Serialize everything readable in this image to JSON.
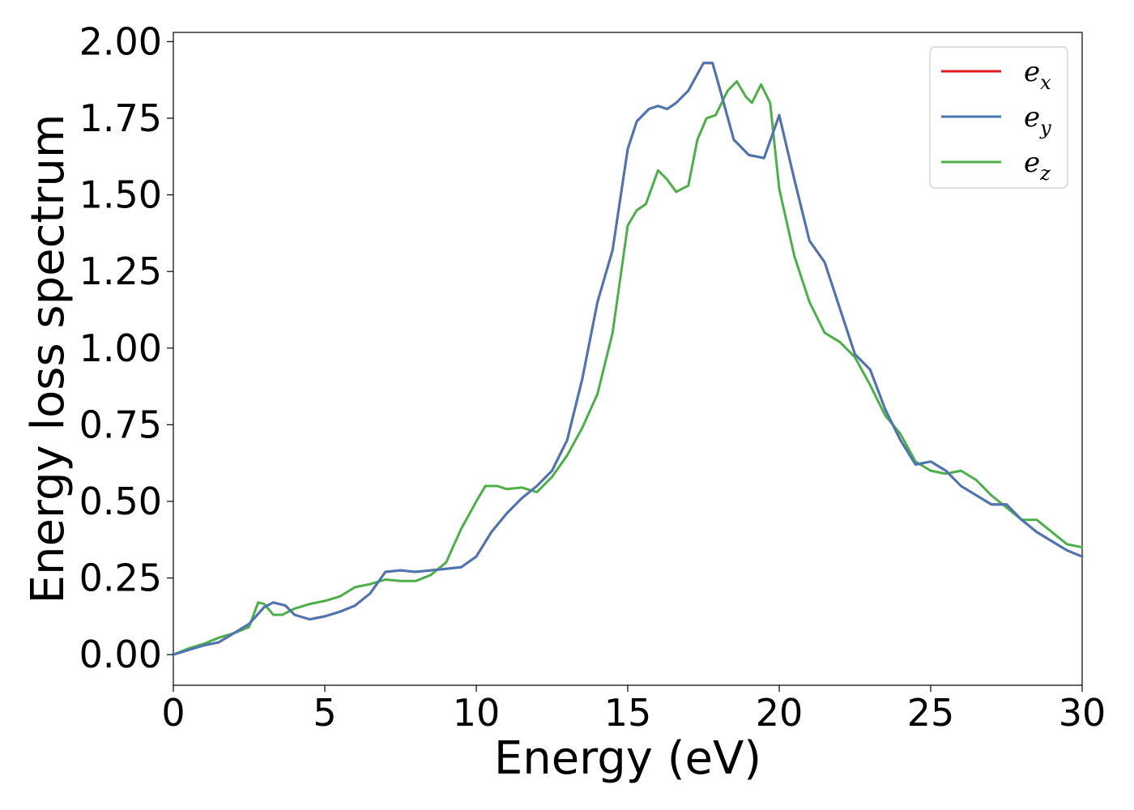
{
  "chart_data": {
    "type": "line",
    "title": "",
    "xlabel": "Energy (eV)",
    "ylabel": "Energy loss spectrum",
    "xlim": [
      0,
      30
    ],
    "ylim": [
      -0.1,
      2.03
    ],
    "xticks": [
      0,
      5,
      10,
      15,
      20,
      25,
      30
    ],
    "xtick_labels": [
      "0",
      "5",
      "10",
      "15",
      "20",
      "25",
      "30"
    ],
    "yticks": [
      0.0,
      0.25,
      0.5,
      0.75,
      1.0,
      1.25,
      1.5,
      1.75,
      2.0
    ],
    "ytick_labels": [
      "0.00",
      "0.25",
      "0.50",
      "0.75",
      "1.00",
      "1.25",
      "1.50",
      "1.75",
      "2.00"
    ],
    "grid": false,
    "legend_position": "top-right",
    "series": [
      {
        "name": "e",
        "subscript": "x",
        "color": "#e41a1c",
        "x": [
          0,
          0.5,
          1,
          1.5,
          2,
          2.5,
          3,
          3.3,
          3.7,
          4,
          4.5,
          5,
          5.5,
          6,
          6.5,
          7,
          7.5,
          8,
          8.5,
          9,
          9.5,
          10,
          10.5,
          11,
          11.5,
          12,
          12.5,
          13,
          13.5,
          14,
          14.5,
          15,
          15.3,
          15.7,
          16,
          16.3,
          16.6,
          17,
          17.5,
          17.8,
          18,
          18.5,
          19,
          19.5,
          20,
          20.5,
          21,
          21.5,
          22,
          22.5,
          23,
          23.5,
          24,
          24.5,
          25,
          25.5,
          26,
          26.5,
          27,
          27.5,
          28,
          28.5,
          29,
          29.5,
          30
        ],
        "y": [
          0.0,
          0.015,
          0.03,
          0.04,
          0.07,
          0.1,
          0.155,
          0.17,
          0.16,
          0.13,
          0.115,
          0.125,
          0.14,
          0.16,
          0.2,
          0.27,
          0.275,
          0.27,
          0.275,
          0.28,
          0.285,
          0.32,
          0.4,
          0.46,
          0.51,
          0.55,
          0.6,
          0.7,
          0.9,
          1.15,
          1.32,
          1.65,
          1.74,
          1.78,
          1.79,
          1.78,
          1.8,
          1.84,
          1.93,
          1.93,
          1.86,
          1.68,
          1.63,
          1.62,
          1.76,
          1.55,
          1.35,
          1.28,
          1.13,
          0.98,
          0.93,
          0.8,
          0.7,
          0.62,
          0.63,
          0.6,
          0.55,
          0.52,
          0.49,
          0.49,
          0.44,
          0.4,
          0.37,
          0.34,
          0.32
        ]
      },
      {
        "name": "e",
        "subscript": "y",
        "color": "#4a77b4",
        "x": [
          0,
          0.5,
          1,
          1.5,
          2,
          2.5,
          3,
          3.3,
          3.7,
          4,
          4.5,
          5,
          5.5,
          6,
          6.5,
          7,
          7.5,
          8,
          8.5,
          9,
          9.5,
          10,
          10.5,
          11,
          11.5,
          12,
          12.5,
          13,
          13.5,
          14,
          14.5,
          15,
          15.3,
          15.7,
          16,
          16.3,
          16.6,
          17,
          17.5,
          17.8,
          18,
          18.5,
          19,
          19.5,
          20,
          20.5,
          21,
          21.5,
          22,
          22.5,
          23,
          23.5,
          24,
          24.5,
          25,
          25.5,
          26,
          26.5,
          27,
          27.5,
          28,
          28.5,
          29,
          29.5,
          30
        ],
        "y": [
          0.0,
          0.015,
          0.03,
          0.04,
          0.07,
          0.1,
          0.155,
          0.17,
          0.16,
          0.13,
          0.115,
          0.125,
          0.14,
          0.16,
          0.2,
          0.27,
          0.275,
          0.27,
          0.275,
          0.28,
          0.285,
          0.32,
          0.4,
          0.46,
          0.51,
          0.55,
          0.6,
          0.7,
          0.9,
          1.15,
          1.32,
          1.65,
          1.74,
          1.78,
          1.79,
          1.78,
          1.8,
          1.84,
          1.93,
          1.93,
          1.86,
          1.68,
          1.63,
          1.62,
          1.76,
          1.55,
          1.35,
          1.28,
          1.13,
          0.98,
          0.93,
          0.8,
          0.7,
          0.62,
          0.63,
          0.6,
          0.55,
          0.52,
          0.49,
          0.49,
          0.44,
          0.4,
          0.37,
          0.34,
          0.32
        ]
      },
      {
        "name": "e",
        "subscript": "z",
        "color": "#4daf4a",
        "x": [
          0,
          0.5,
          1,
          1.5,
          2,
          2.5,
          2.8,
          3,
          3.3,
          3.6,
          4,
          4.5,
          5,
          5.5,
          6,
          6.5,
          7,
          7.5,
          8,
          8.5,
          9,
          9.5,
          10,
          10.3,
          10.7,
          11,
          11.5,
          12,
          12.5,
          13,
          13.5,
          14,
          14.5,
          15,
          15.3,
          15.6,
          16,
          16.3,
          16.6,
          17,
          17.3,
          17.6,
          17.9,
          18.3,
          18.6,
          18.9,
          19.1,
          19.4,
          19.7,
          20,
          20.5,
          21,
          21.5,
          22,
          22.5,
          23,
          23.5,
          24,
          24.5,
          25,
          25.5,
          26,
          26.5,
          27,
          27.5,
          28,
          28.5,
          29,
          29.5,
          30
        ],
        "y": [
          0.0,
          0.02,
          0.035,
          0.055,
          0.07,
          0.09,
          0.17,
          0.165,
          0.13,
          0.13,
          0.15,
          0.165,
          0.175,
          0.19,
          0.22,
          0.23,
          0.245,
          0.24,
          0.24,
          0.26,
          0.3,
          0.41,
          0.5,
          0.55,
          0.55,
          0.54,
          0.545,
          0.53,
          0.58,
          0.65,
          0.74,
          0.85,
          1.05,
          1.4,
          1.45,
          1.47,
          1.58,
          1.55,
          1.51,
          1.53,
          1.68,
          1.75,
          1.76,
          1.84,
          1.87,
          1.82,
          1.8,
          1.86,
          1.8,
          1.52,
          1.3,
          1.15,
          1.05,
          1.02,
          0.97,
          0.88,
          0.78,
          0.72,
          0.63,
          0.6,
          0.59,
          0.6,
          0.57,
          0.52,
          0.48,
          0.44,
          0.44,
          0.4,
          0.36,
          0.35
        ]
      }
    ]
  }
}
